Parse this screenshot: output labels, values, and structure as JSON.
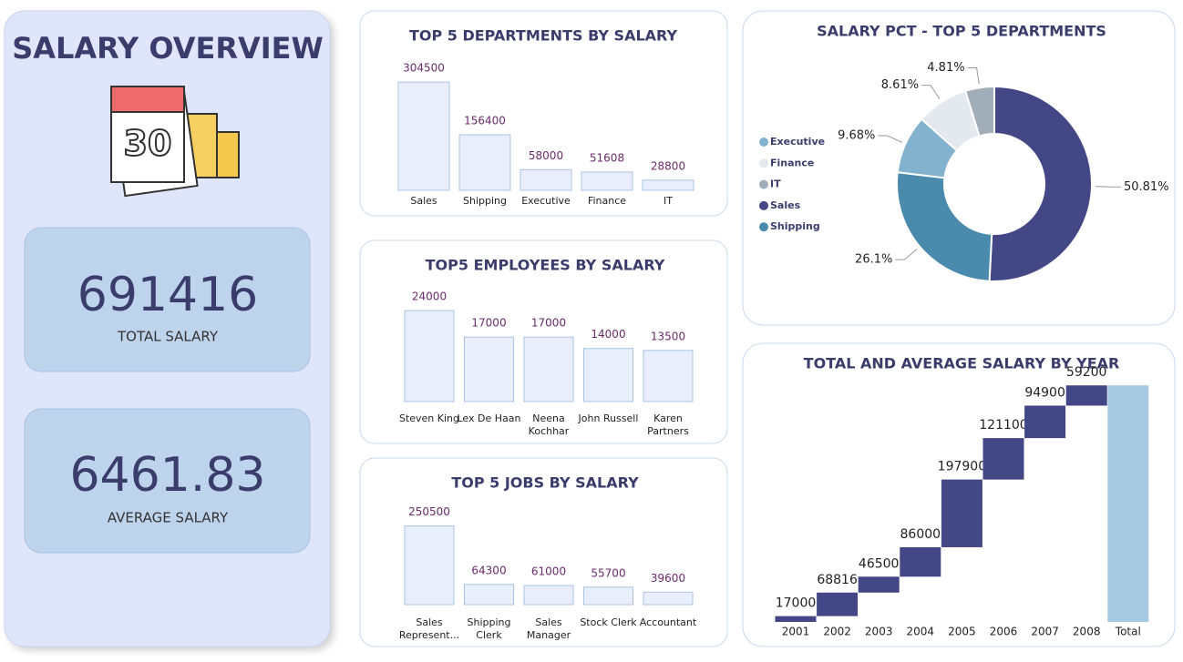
{
  "header": {
    "title": "SALARY OVERVIEW"
  },
  "kpis": [
    {
      "value": "691416",
      "label": "TOTAL SALARY"
    },
    {
      "value": "6461.83",
      "label": "AVERAGE SALARY"
    }
  ],
  "chart_data": [
    {
      "type": "bar",
      "title": "TOP 5 DEPARTMENTS BY SALARY",
      "categories": [
        "Sales",
        "Shipping",
        "Executive",
        "Finance",
        "IT"
      ],
      "values": [
        304500,
        156400,
        58000,
        51608,
        28800
      ],
      "ylim": [
        0,
        310000
      ],
      "color": "#e8eefc"
    },
    {
      "type": "bar",
      "title": "TOP5 EMPLOYEES BY SALARY",
      "categories": [
        "Steven King",
        "Lex De Haan",
        "Neena Kochhar",
        "John Russell",
        "Karen Partners"
      ],
      "values": [
        24000,
        17000,
        17000,
        14000,
        13500
      ],
      "ylim": [
        0,
        24500
      ],
      "color": "#e8eefc"
    },
    {
      "type": "bar",
      "title": "TOP 5 JOBS BY SALARY",
      "categories": [
        "Sales Represent...",
        "Shipping Clerk",
        "Sales Manager",
        "Stock Clerk",
        "Accountant"
      ],
      "values": [
        250500,
        64300,
        61000,
        55700,
        39600
      ],
      "ylim": [
        0,
        255000
      ],
      "color": "#e8eefc"
    },
    {
      "type": "donut",
      "title": "SALARY PCT - TOP 5 DEPARTMENTS",
      "categories": [
        "Executive",
        "Finance",
        "IT",
        "Sales",
        "Shipping"
      ],
      "values": [
        9.68,
        8.61,
        4.81,
        50.81,
        26.1
      ],
      "value_labels": [
        "9.68%",
        "8.61%",
        "4.81%",
        "50.81%",
        "26.1%"
      ],
      "colors": [
        "#82b2cd",
        "#e4e9f0",
        "#a1aeb9",
        "#434785",
        "#4a8aad"
      ],
      "legend": "left"
    },
    {
      "type": "waterfall",
      "title": "TOTAL AND AVERAGE SALARY BY YEAR",
      "categories": [
        "2001",
        "2002",
        "2003",
        "2004",
        "2005",
        "2006",
        "2007",
        "2008"
      ],
      "values": [
        17000,
        68816,
        46500,
        86000,
        197900,
        121100,
        94900,
        59200
      ],
      "total_label": "Total",
      "ylim": [
        0,
        700000
      ],
      "color": "#434785",
      "total_color": "#a6c9e2"
    }
  ]
}
